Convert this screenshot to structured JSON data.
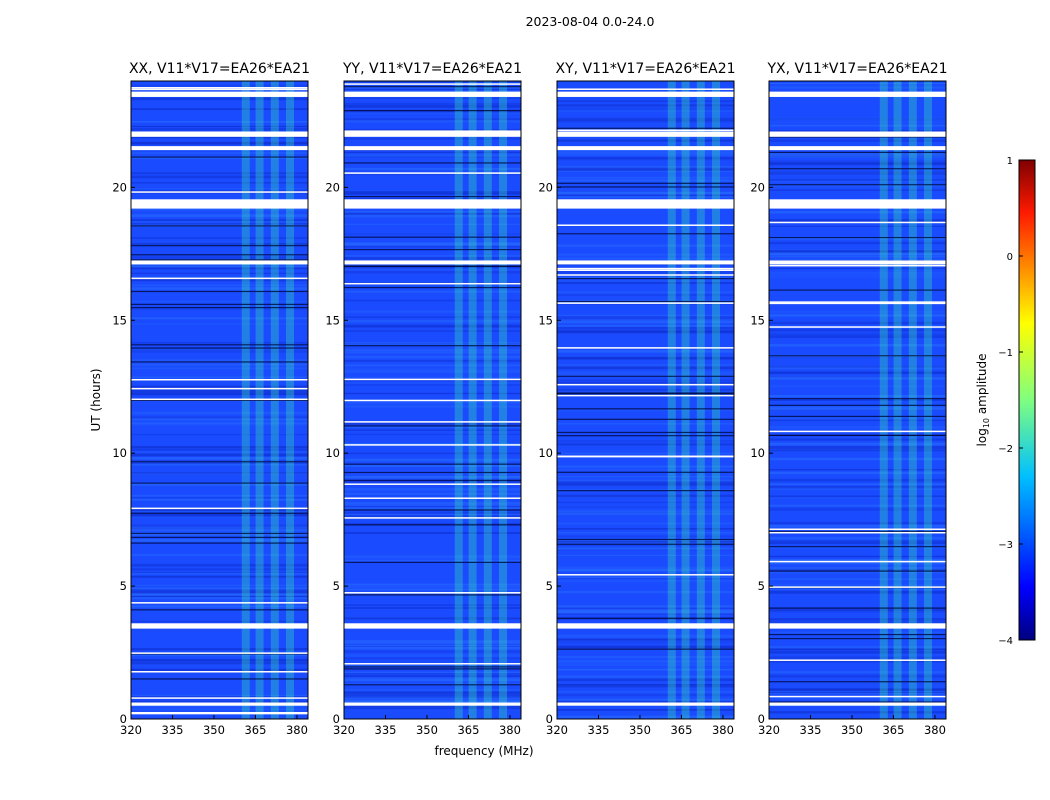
{
  "suptitle": "2023-08-04 0.0-24.0",
  "chart_data": {
    "type": "heatmap",
    "title": "2023-08-04 0.0-24.0",
    "xlabel": "frequency (MHz)",
    "ylabel": "UT (hours)",
    "xlim": [
      320,
      384
    ],
    "ylim": [
      0,
      24
    ],
    "xticks": [
      320,
      335,
      350,
      365,
      380
    ],
    "yticks": [
      0,
      5,
      10,
      15,
      20
    ],
    "panels": [
      {
        "title": "XX, V11*V17=EA26*EA21"
      },
      {
        "title": "YY, V11*V17=EA26*EA21"
      },
      {
        "title": "XY, V11*V17=EA26*EA21"
      },
      {
        "title": "YX, V11*V17=EA26*EA21"
      }
    ],
    "colorbar": {
      "label": "log10 amplitude",
      "label_main": "log",
      "label_sub": "10",
      "label_rest": " amplitude",
      "range": [
        -4,
        1
      ],
      "ticks": [
        -4,
        -3,
        -2,
        -1,
        0,
        1
      ],
      "tick_labels": [
        "−4",
        "−3",
        "−2",
        "−1",
        "0",
        "1"
      ],
      "colormap": "jet"
    },
    "flagged_ut_bands": [
      [
        0.5,
        0.62
      ],
      [
        3.4,
        3.6
      ],
      [
        17.1,
        17.25
      ],
      [
        19.2,
        19.55
      ],
      [
        21.4,
        21.55
      ],
      [
        21.9,
        22.1
      ],
      [
        23.4,
        23.6
      ]
    ],
    "bright_freq_channels_mhz": [
      361.5,
      366.5,
      372,
      377.5
    ]
  },
  "colors": {
    "background_low": "#1a4bff",
    "band_bright": "#33e6b3",
    "flag": "#ffffff"
  }
}
